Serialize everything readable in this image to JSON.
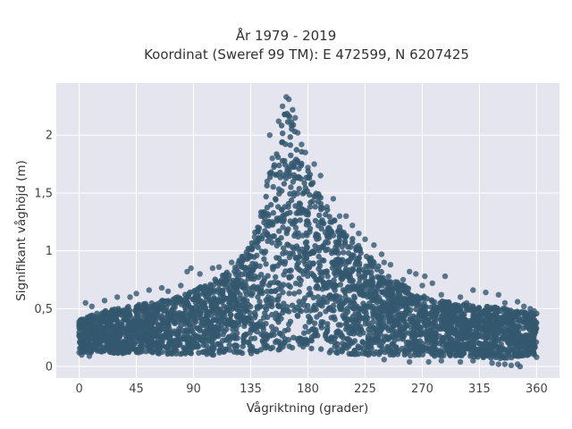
{
  "chart_data": {
    "type": "scatter",
    "title_line1": "År 1979 - 2019",
    "title_line2": "Koordinat (Sweref 99 TM): E 472599, N 6207425",
    "xlabel": "Vågriktning (grader)",
    "ylabel": "Signifikant våghöjd (m)",
    "xlim": [
      -18,
      378
    ],
    "ylim": [
      -0.1,
      2.45
    ],
    "xticks": [
      0,
      45,
      90,
      135,
      180,
      225,
      270,
      315,
      360
    ],
    "xtick_labels": [
      "0",
      "45",
      "90",
      "135",
      "180",
      "225",
      "270",
      "315",
      "360"
    ],
    "yticks": [
      0,
      0.5,
      1,
      1.5,
      2
    ],
    "ytick_labels": [
      "0",
      "0,5",
      "1",
      "1,5",
      "2"
    ],
    "grid": true,
    "legend": "none",
    "colors": {
      "marker": "#34586f",
      "plot_bg": "#e5e5f0",
      "grid": "#ffffff"
    },
    "envelope": {
      "direction": [
        0,
        20,
        40,
        60,
        80,
        100,
        120,
        135,
        145,
        155,
        163,
        170,
        180,
        195,
        210,
        225,
        240,
        270,
        300,
        330,
        360
      ],
      "lower": [
        0.08,
        0.08,
        0.07,
        0.07,
        0.06,
        0.06,
        0.06,
        0.07,
        0.08,
        0.1,
        0.12,
        0.12,
        0.1,
        0.08,
        0.07,
        0.06,
        0.06,
        0.05,
        0.05,
        0.03,
        0.05
      ],
      "upper": [
        0.45,
        0.52,
        0.56,
        0.6,
        0.65,
        0.75,
        0.88,
        1.1,
        1.5,
        1.95,
        2.3,
        2.1,
        1.75,
        1.4,
        1.2,
        1.05,
        0.85,
        0.65,
        0.58,
        0.55,
        0.5
      ]
    },
    "points": [
      [
        163,
        2.33
      ],
      [
        165,
        2.31
      ],
      [
        160,
        2.25
      ],
      [
        168,
        2.22
      ],
      [
        170,
        2.15
      ],
      [
        157,
        2.12
      ],
      [
        150,
        2.0
      ],
      [
        175,
        1.92
      ],
      [
        178,
        1.85
      ],
      [
        185,
        1.75
      ],
      [
        190,
        1.65
      ],
      [
        200,
        1.45
      ],
      [
        210,
        1.3
      ],
      [
        215,
        1.22
      ],
      [
        225,
        1.1
      ],
      [
        232,
        1.05
      ],
      [
        238,
        0.97
      ],
      [
        245,
        0.88
      ],
      [
        255,
        0.75
      ],
      [
        260,
        0.82
      ],
      [
        265,
        0.8
      ],
      [
        272,
        0.78
      ],
      [
        278,
        0.72
      ],
      [
        285,
        0.62
      ],
      [
        288,
        0.78
      ],
      [
        300,
        0.6
      ],
      [
        310,
        0.66
      ],
      [
        320,
        0.64
      ],
      [
        330,
        0.62
      ],
      [
        345,
        0.56
      ],
      [
        355,
        0.5
      ],
      [
        358,
        0.48
      ],
      [
        5,
        0.55
      ],
      [
        10,
        0.52
      ],
      [
        20,
        0.57
      ],
      [
        30,
        0.6
      ],
      [
        40,
        0.6
      ],
      [
        45,
        0.63
      ],
      [
        55,
        0.66
      ],
      [
        65,
        0.68
      ],
      [
        70,
        0.65
      ],
      [
        80,
        0.7
      ],
      [
        85,
        0.82
      ],
      [
        88,
        0.85
      ],
      [
        95,
        0.8
      ],
      [
        105,
        0.85
      ],
      [
        110,
        0.86
      ],
      [
        120,
        0.9
      ],
      [
        128,
        0.95
      ],
      [
        133,
        1.02
      ],
      [
        138,
        1.12
      ],
      [
        143,
        1.3
      ],
      [
        148,
        1.6
      ],
      [
        152,
        1.8
      ],
      [
        172,
        2.02
      ],
      [
        180,
        1.72
      ],
      [
        195,
        1.38
      ],
      [
        205,
        1.3
      ],
      [
        220,
        1.15
      ],
      [
        240,
        0.9
      ],
      [
        270,
        0.7
      ],
      [
        305,
        0.55
      ],
      [
        335,
        0.55
      ],
      [
        350,
        0.52
      ],
      [
        240,
        0.06
      ],
      [
        260,
        0.04
      ],
      [
        285,
        0.05
      ],
      [
        300,
        0.04
      ],
      [
        325,
        0.03
      ],
      [
        335,
        0.02
      ],
      [
        340,
        0.01
      ],
      [
        345,
        0.02
      ],
      [
        347,
        0.0
      ],
      [
        330,
        0.02
      ],
      [
        310,
        0.05
      ],
      [
        275,
        0.04
      ],
      [
        360,
        0.08
      ],
      [
        0,
        0.12
      ],
      [
        2,
        0.1
      ],
      [
        8,
        0.09
      ]
    ]
  }
}
